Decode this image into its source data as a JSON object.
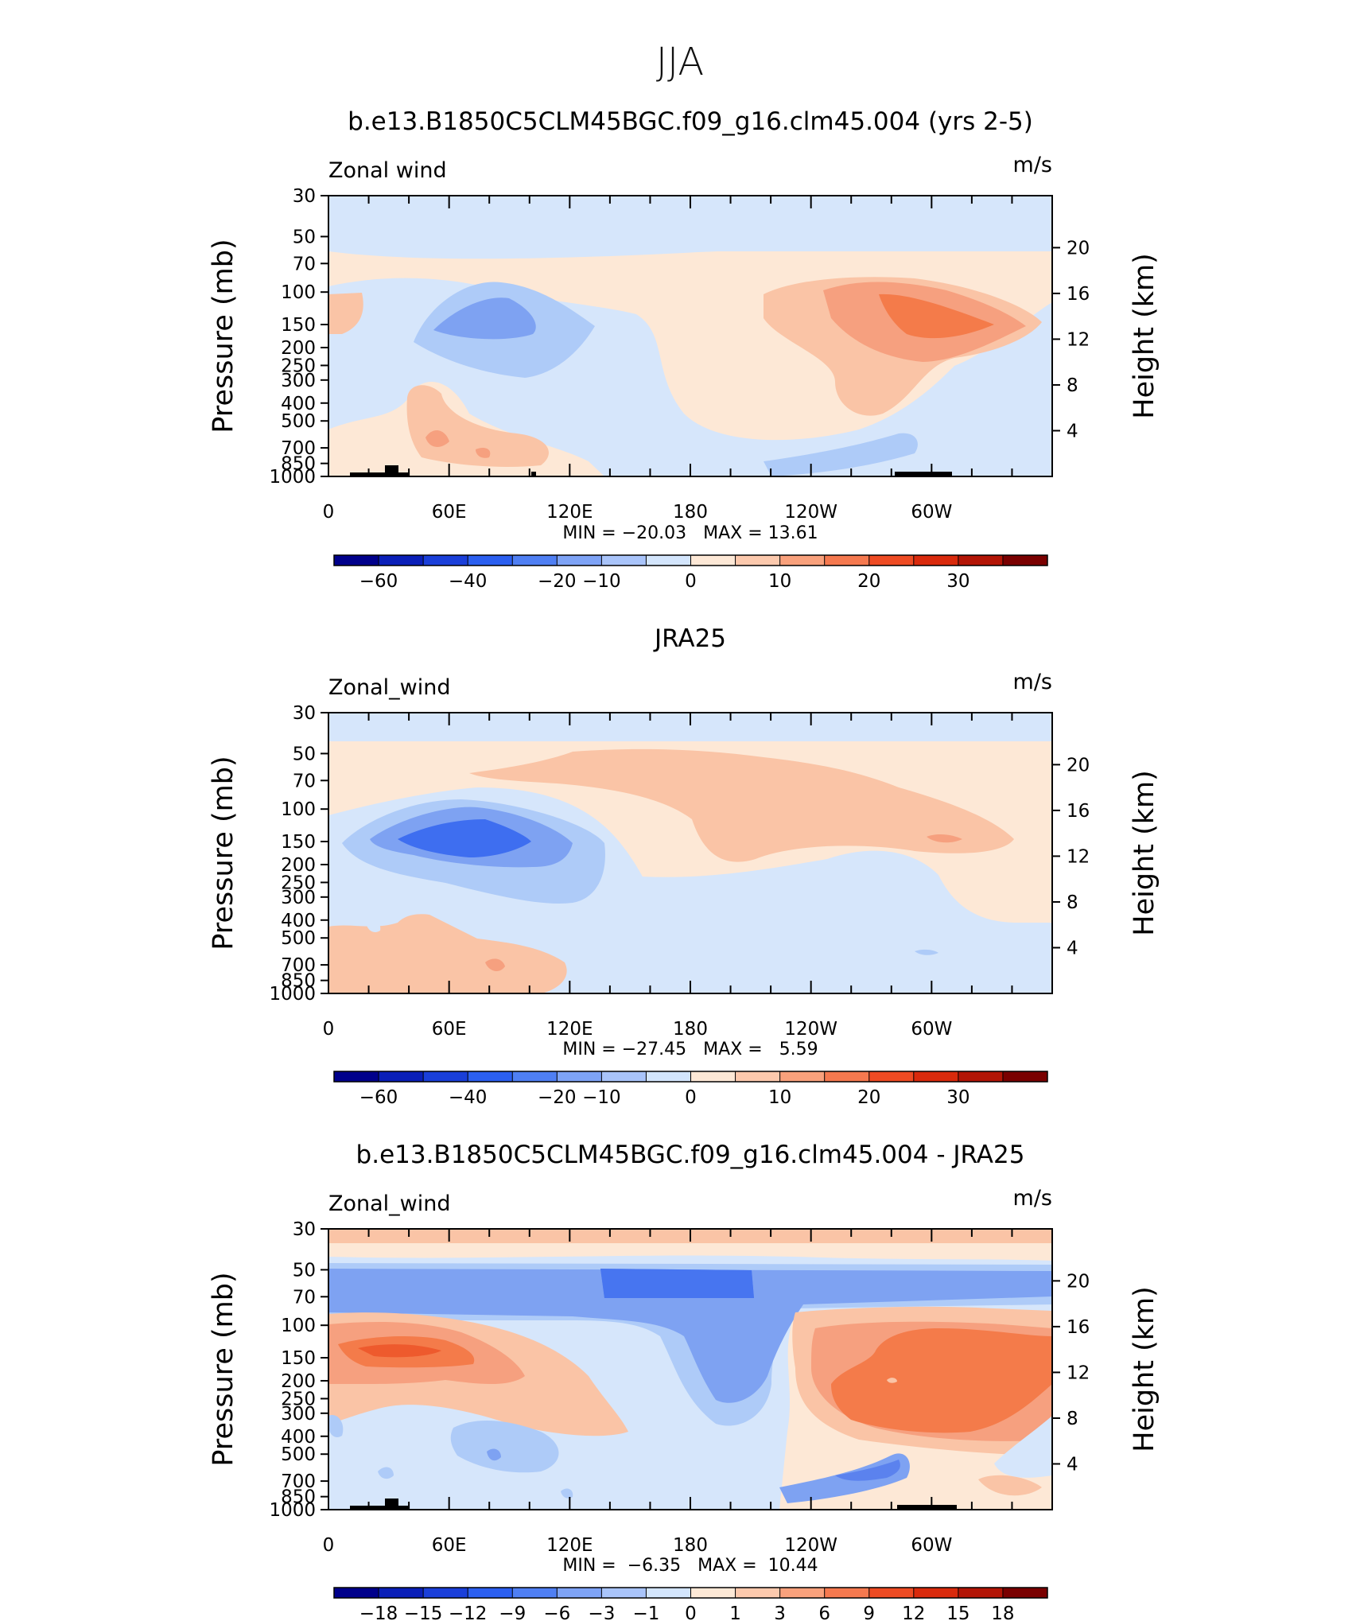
{
  "page_title": "JJA",
  "colors": {
    "cbar_main": [
      "#00008b",
      "#0a1fb8",
      "#1a3fd9",
      "#2b5ff0",
      "#4f7ff3",
      "#7ea3f6",
      "#a9c4fa",
      "#d3e5fc",
      "#fde8d6",
      "#fcc9ad",
      "#f9a17c",
      "#f5794f",
      "#ee4b23",
      "#d92a0c",
      "#b31506",
      "#7a0000"
    ],
    "cbar_diff": [
      "#00008b",
      "#0a1fb8",
      "#1a3fd9",
      "#2b5ff0",
      "#4f7ff3",
      "#7ea3f6",
      "#a9c4fa",
      "#d3e5fc",
      "#fde8d6",
      "#fcc9ad",
      "#f9a17c",
      "#f5794f",
      "#ee4b23",
      "#d92a0c",
      "#b31506",
      "#7a0000"
    ],
    "blue1": "#d6e6fb",
    "blue2": "#aecbf8",
    "blue3": "#7ea2f2",
    "blue4": "#5b82ee",
    "blue5": "#3e6ef0",
    "red1": "#fde8d6",
    "red2": "#fac4a6",
    "red3": "#f6a07f",
    "red4": "#f47b4a",
    "red5": "#ee5a2d",
    "topo": "#000000"
  },
  "chart_data": [
    {
      "type": "contour",
      "title": "b.e13.B1850C5CLM45BGC.f09_g16.clm45.004 (yrs 2-5)",
      "variable_label": "Zonal wind",
      "units_label": "m/s",
      "ylabel": "Pressure (mb)",
      "y2label": "Height (km)",
      "x_ticks": [
        "0",
        "60E",
        "120E",
        "180",
        "120W",
        "60W"
      ],
      "x_range": [
        0,
        360
      ],
      "y_ticks": [
        "30",
        "50",
        "70",
        "100",
        "150",
        "200",
        "250",
        "300",
        "400",
        "500",
        "700",
        "850",
        "1000"
      ],
      "y2_ticks": [
        "20",
        "16",
        "12",
        "8",
        "4"
      ],
      "ylim": [
        1000,
        30
      ],
      "min_max_text": "MIN = −20.03   MAX = 13.61",
      "stats": {
        "min": -20.03,
        "max": 13.61
      },
      "colorbar_ticks": [
        "−60",
        "−40",
        "−20",
        "−10",
        "0",
        "10",
        "20",
        "30"
      ]
    },
    {
      "type": "contour",
      "title": "JRA25",
      "variable_label": "Zonal_wind",
      "units_label": "m/s",
      "ylabel": "Pressure (mb)",
      "y2label": "Height (km)",
      "x_ticks": [
        "0",
        "60E",
        "120E",
        "180",
        "120W",
        "60W"
      ],
      "x_range": [
        0,
        360
      ],
      "y_ticks": [
        "30",
        "50",
        "70",
        "100",
        "150",
        "200",
        "250",
        "300",
        "400",
        "500",
        "700",
        "850",
        "1000"
      ],
      "y2_ticks": [
        "20",
        "16",
        "12",
        "8",
        "4"
      ],
      "ylim": [
        1000,
        30
      ],
      "min_max_text": "MIN = −27.45   MAX =   5.59",
      "stats": {
        "min": -27.45,
        "max": 5.59
      },
      "colorbar_ticks": [
        "−60",
        "−40",
        "−20",
        "−10",
        "0",
        "10",
        "20",
        "30"
      ]
    },
    {
      "type": "contour",
      "title": "b.e13.B1850C5CLM45BGC.f09_g16.clm45.004 - JRA25",
      "variable_label": "Zonal_wind",
      "units_label": "m/s",
      "ylabel": "Pressure (mb)",
      "y2label": "Height (km)",
      "x_ticks": [
        "0",
        "60E",
        "120E",
        "180",
        "120W",
        "60W"
      ],
      "x_range": [
        0,
        360
      ],
      "y_ticks": [
        "30",
        "50",
        "70",
        "100",
        "150",
        "200",
        "250",
        "300",
        "400",
        "500",
        "700",
        "850",
        "1000"
      ],
      "y2_ticks": [
        "20",
        "16",
        "12",
        "8",
        "4"
      ],
      "ylim": [
        1000,
        30
      ],
      "min_max_text": "MIN =  −6.35   MAX =  10.44",
      "stats": {
        "min": -6.35,
        "max": 10.44
      },
      "colorbar_ticks": [
        "−18",
        "−15",
        "−12",
        "−9",
        "−6",
        "−3",
        "−1",
        "0",
        "1",
        "3",
        "6",
        "9",
        "12",
        "15",
        "18"
      ]
    }
  ]
}
